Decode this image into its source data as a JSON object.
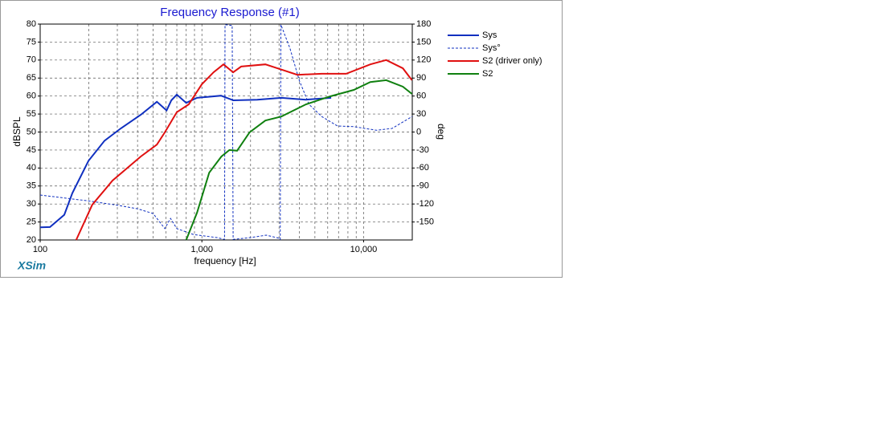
{
  "chart_data": {
    "type": "line",
    "title": "Frequency Response (#1)",
    "x_label": "frequency [Hz]",
    "y_label": "dBSPL",
    "y2_label": "deg",
    "brand": "XSim",
    "xscale": "log",
    "xlim": [
      100,
      20000
    ],
    "xticks": [
      100,
      {
        "value": 1000,
        "label": "1,000"
      },
      {
        "value": 10000,
        "label": "10,000"
      }
    ],
    "xgrid": [
      200,
      300,
      400,
      500,
      600,
      700,
      800,
      900,
      2000,
      3000,
      4000,
      5000,
      6000,
      7000,
      8000,
      9000,
      20000
    ],
    "ylim": [
      20,
      80
    ],
    "yticks": [
      20,
      25,
      30,
      35,
      40,
      45,
      50,
      55,
      60,
      65,
      70,
      75,
      80
    ],
    "y2lim": [
      -180,
      180
    ],
    "y2ticks": [
      -150,
      -120,
      -90,
      -60,
      -30,
      0,
      30,
      60,
      90,
      120,
      150,
      180
    ],
    "grid": true,
    "legend": "right",
    "series": [
      {
        "name": "Sys",
        "color": "#1030c0",
        "linewidth": 2,
        "linestyle": "solid",
        "x": [
          100,
          115,
          141,
          158,
          199,
          250,
          315,
          419,
          527,
          605,
          647,
          700,
          800,
          933,
          1313,
          1566,
          2200,
          3100,
          4400,
          6300
        ],
        "values": [
          23.5,
          23.6,
          27,
          33,
          42,
          47.6,
          51,
          54.8,
          58.4,
          56,
          58.8,
          60.4,
          58.1,
          59.5,
          60.1,
          58.8,
          59,
          59.5,
          59,
          59.5
        ]
      },
      {
        "name": "Sys°",
        "color": "#1030c0",
        "linewidth": 1,
        "linestyle": "dashed",
        "axis": "y2",
        "x": [
          100,
          200,
          300,
          400,
          500,
          590,
          640,
          700,
          890,
          1240,
          1380,
          1390,
          1500,
          1540,
          1560,
          2000,
          2500,
          3000,
          3050,
          3080,
          3500,
          4000,
          4600,
          5500,
          6900,
          8700,
          12000,
          15000,
          20000
        ],
        "values": [
          -105,
          -115,
          -122,
          -128,
          -136,
          -161,
          -144,
          -161,
          -171,
          -176,
          -179,
          179,
          178,
          178,
          -179,
          -176,
          -172,
          -177,
          -179,
          179,
          140,
          86,
          46,
          26,
          10,
          9,
          3,
          6,
          26
        ]
      },
      {
        "name": "S2 (driver only)",
        "color": "#e01010",
        "linewidth": 2,
        "linestyle": "solid",
        "x": [
          167,
          210,
          280,
          419,
          527,
          590,
          700,
          830,
          1000,
          1180,
          1360,
          1560,
          1750,
          2470,
          2930,
          3900,
          5500,
          7800,
          11000,
          13800,
          17500,
          19900
        ],
        "values": [
          20,
          29.8,
          36.5,
          43.2,
          46.5,
          49.9,
          55.5,
          57.7,
          63.3,
          66.6,
          68.8,
          66.6,
          68.2,
          68.8,
          67.7,
          65.9,
          66.2,
          66.2,
          68.8,
          70,
          67.7,
          64.4
        ]
      },
      {
        "name": "S2",
        "color": "#108010",
        "linewidth": 2,
        "linestyle": "solid",
        "x": [
          800,
          933,
          1110,
          1320,
          1480,
          1650,
          1970,
          2470,
          3100,
          4400,
          6200,
          8700,
          11000,
          13800,
          17500,
          19900
        ],
        "values": [
          20,
          27.6,
          38.7,
          43.2,
          45,
          44.8,
          49.9,
          53.2,
          54.3,
          57.7,
          59.9,
          61.7,
          63.9,
          64.4,
          62.6,
          60.6
        ]
      }
    ]
  }
}
